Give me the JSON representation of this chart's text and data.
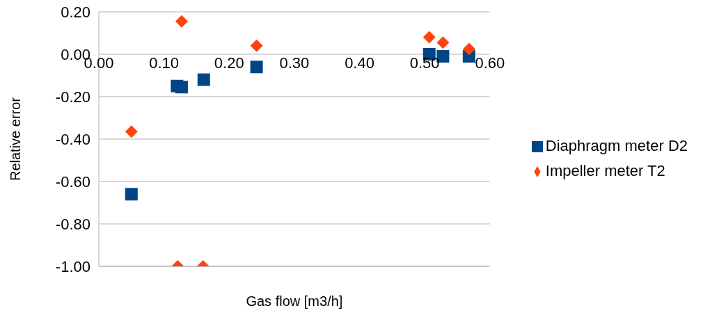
{
  "chart_data": {
    "type": "scatter",
    "xlabel": "Gas flow [m3/h]",
    "ylabel": "Relative error",
    "xlim": [
      0,
      0.6
    ],
    "ylim": [
      -1,
      0.2
    ],
    "xticks": [
      {
        "value": 0,
        "label": "0.00"
      },
      {
        "value": 0.1,
        "label": "0.10"
      },
      {
        "value": 0.2,
        "label": "0.20"
      },
      {
        "value": 0.3,
        "label": "0.30"
      },
      {
        "value": 0.4,
        "label": "0.40"
      },
      {
        "value": 0.5,
        "label": "0.50"
      },
      {
        "value": 0.6,
        "label": "0.60"
      }
    ],
    "yticks": [
      {
        "value": 0.2,
        "label": "0.20"
      },
      {
        "value": 0,
        "label": "0.00"
      },
      {
        "value": -0.2,
        "label": "-0.20"
      },
      {
        "value": -0.4,
        "label": "-0.40"
      },
      {
        "value": -0.6,
        "label": "-0.60"
      },
      {
        "value": -0.8,
        "label": "-0.80"
      },
      {
        "value": -1,
        "label": "-1.00"
      }
    ],
    "grid": "y",
    "legend": "right",
    "series": [
      {
        "name": "Diaphragm meter D2",
        "color": "#004586",
        "marker": "square",
        "x": [
          0.05,
          0.12,
          0.127,
          0.161,
          0.242,
          0.507,
          0.528,
          0.568
        ],
        "values": [
          -0.66,
          -0.15,
          -0.155,
          -0.12,
          -0.06,
          0.0,
          -0.01,
          -0.01
        ]
      },
      {
        "name": "Impeller meter T2",
        "color": "#ff420e",
        "marker": "diamond",
        "x": [
          0.05,
          0.127,
          0.121,
          0.16,
          0.242,
          0.507,
          0.528,
          0.568
        ],
        "values": [
          -0.365,
          0.155,
          -1.0,
          -1.0,
          0.04,
          0.08,
          0.055,
          0.025
        ]
      }
    ]
  }
}
